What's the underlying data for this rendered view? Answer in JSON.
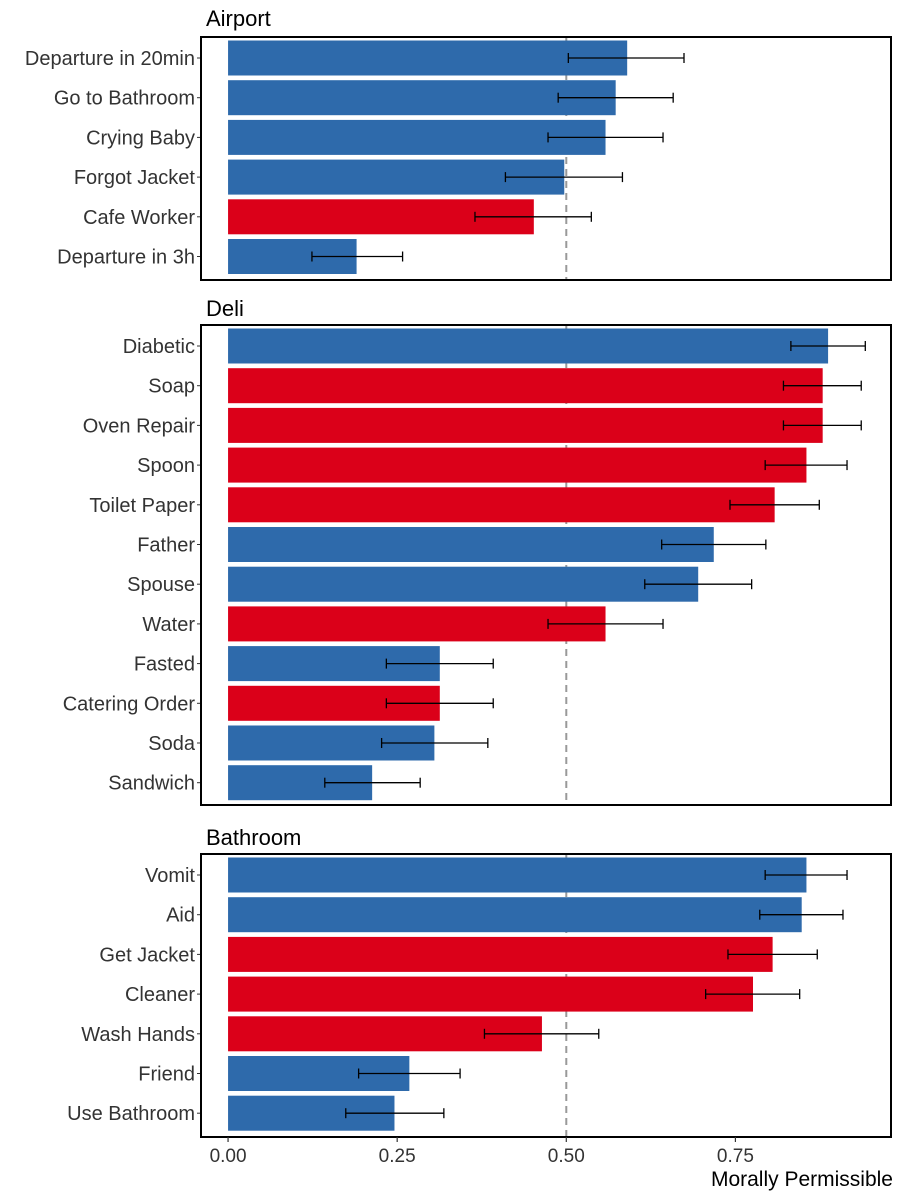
{
  "chart_data": {
    "type": "bar",
    "orientation": "horizontal",
    "xlabel": "Morally Permissible",
    "ylabel": "",
    "xlim": [
      -0.04,
      0.98
    ],
    "xticks": [
      {
        "value": 0,
        "label": "0.00"
      },
      {
        "value": 0.25,
        "label": "0.25"
      },
      {
        "value": 0.5,
        "label": "0.50"
      },
      {
        "value": 0.75,
        "label": "0.75"
      }
    ],
    "reference_line": 0.5,
    "colors": {
      "blue": "#2E6AAB",
      "red": "#DB0019"
    },
    "facets": [
      {
        "title": "Airport",
        "bars": [
          {
            "label": "Departure in 20min",
            "value": 0.59,
            "err_low": 0.503,
            "err_high": 0.674,
            "color": "blue"
          },
          {
            "label": "Go to Bathroom",
            "value": 0.573,
            "err_low": 0.488,
            "err_high": 0.658,
            "color": "blue"
          },
          {
            "label": "Crying Baby",
            "value": 0.558,
            "err_low": 0.473,
            "err_high": 0.643,
            "color": "blue"
          },
          {
            "label": "Forgot Jacket",
            "value": 0.497,
            "err_low": 0.41,
            "err_high": 0.583,
            "color": "blue"
          },
          {
            "label": "Cafe Worker",
            "value": 0.452,
            "err_low": 0.365,
            "err_high": 0.537,
            "color": "red"
          },
          {
            "label": "Departure in 3h",
            "value": 0.19,
            "err_low": 0.124,
            "err_high": 0.258,
            "color": "blue"
          }
        ]
      },
      {
        "title": "Deli",
        "bars": [
          {
            "label": "Diabetic",
            "value": 0.887,
            "err_low": 0.832,
            "err_high": 0.942,
            "color": "blue"
          },
          {
            "label": "Soap",
            "value": 0.879,
            "err_low": 0.821,
            "err_high": 0.936,
            "color": "red"
          },
          {
            "label": "Oven Repair",
            "value": 0.879,
            "err_low": 0.821,
            "err_high": 0.936,
            "color": "red"
          },
          {
            "label": "Spoon",
            "value": 0.855,
            "err_low": 0.794,
            "err_high": 0.915,
            "color": "red"
          },
          {
            "label": "Toilet Paper",
            "value": 0.808,
            "err_low": 0.742,
            "err_high": 0.874,
            "color": "red"
          },
          {
            "label": "Father",
            "value": 0.718,
            "err_low": 0.641,
            "err_high": 0.795,
            "color": "blue"
          },
          {
            "label": "Spouse",
            "value": 0.695,
            "err_low": 0.616,
            "err_high": 0.774,
            "color": "blue"
          },
          {
            "label": "Water",
            "value": 0.558,
            "err_low": 0.473,
            "err_high": 0.643,
            "color": "red"
          },
          {
            "label": "Fasted",
            "value": 0.313,
            "err_low": 0.234,
            "err_high": 0.392,
            "color": "blue"
          },
          {
            "label": "Catering Order",
            "value": 0.313,
            "err_low": 0.234,
            "err_high": 0.392,
            "color": "red"
          },
          {
            "label": "Soda",
            "value": 0.305,
            "err_low": 0.227,
            "err_high": 0.384,
            "color": "blue"
          },
          {
            "label": "Sandwich",
            "value": 0.213,
            "err_low": 0.143,
            "err_high": 0.284,
            "color": "blue"
          }
        ]
      },
      {
        "title": "Bathroom",
        "bars": [
          {
            "label": "Vomit",
            "value": 0.855,
            "err_low": 0.794,
            "err_high": 0.915,
            "color": "blue"
          },
          {
            "label": "Aid",
            "value": 0.848,
            "err_low": 0.786,
            "err_high": 0.909,
            "color": "blue"
          },
          {
            "label": "Get Jacket",
            "value": 0.805,
            "err_low": 0.739,
            "err_high": 0.871,
            "color": "red"
          },
          {
            "label": "Cleaner",
            "value": 0.776,
            "err_low": 0.706,
            "err_high": 0.845,
            "color": "red"
          },
          {
            "label": "Wash Hands",
            "value": 0.464,
            "err_low": 0.379,
            "err_high": 0.548,
            "color": "red"
          },
          {
            "label": "Friend",
            "value": 0.268,
            "err_low": 0.193,
            "err_high": 0.343,
            "color": "blue"
          },
          {
            "label": "Use Bathroom",
            "value": 0.246,
            "err_low": 0.174,
            "err_high": 0.319,
            "color": "blue"
          }
        ]
      }
    ]
  }
}
